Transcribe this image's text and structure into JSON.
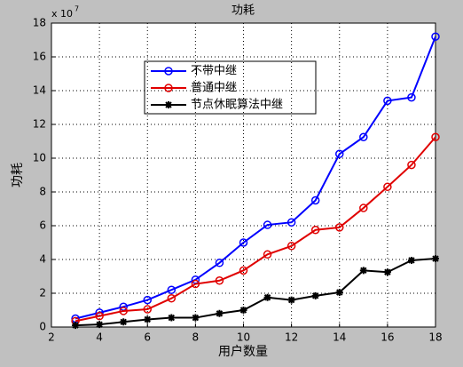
{
  "chart_data": {
    "type": "line",
    "title": "功耗",
    "x_label": "用户数量",
    "y_label": "功耗",
    "y_multiplier": "x 10",
    "y_multiplier_power": "7",
    "x": [
      3,
      4,
      5,
      6,
      7,
      8,
      9,
      10,
      11,
      12,
      13,
      14,
      15,
      16,
      17,
      18
    ],
    "series": [
      {
        "name": "不带中继",
        "color": "#0000ff",
        "marker": "circle",
        "values": [
          0.5,
          0.85,
          1.2,
          1.6,
          2.2,
          2.8,
          3.8,
          5.0,
          6.05,
          6.2,
          7.5,
          10.25,
          11.25,
          13.4,
          13.6,
          17.2
        ]
      },
      {
        "name": "普通中继",
        "color": "#e00000",
        "marker": "circle",
        "values": [
          0.35,
          0.65,
          0.95,
          1.05,
          1.7,
          2.55,
          2.75,
          3.35,
          4.3,
          4.8,
          5.75,
          5.9,
          7.05,
          8.3,
          9.6,
          11.25
        ]
      },
      {
        "name": "节点休眠算法中继",
        "color": "#000000",
        "marker": "star",
        "values": [
          0.1,
          0.15,
          0.3,
          0.45,
          0.55,
          0.55,
          0.8,
          1.0,
          1.75,
          1.6,
          1.85,
          2.05,
          3.35,
          3.25,
          3.95,
          4.05
        ]
      }
    ],
    "xlim": [
      2,
      18
    ],
    "xticks": [
      2,
      4,
      6,
      8,
      10,
      12,
      14,
      16,
      18
    ],
    "ylim": [
      0,
      18
    ],
    "yticks": [
      0,
      2,
      4,
      6,
      8,
      10,
      12,
      14,
      16,
      18
    ],
    "grid": true
  }
}
